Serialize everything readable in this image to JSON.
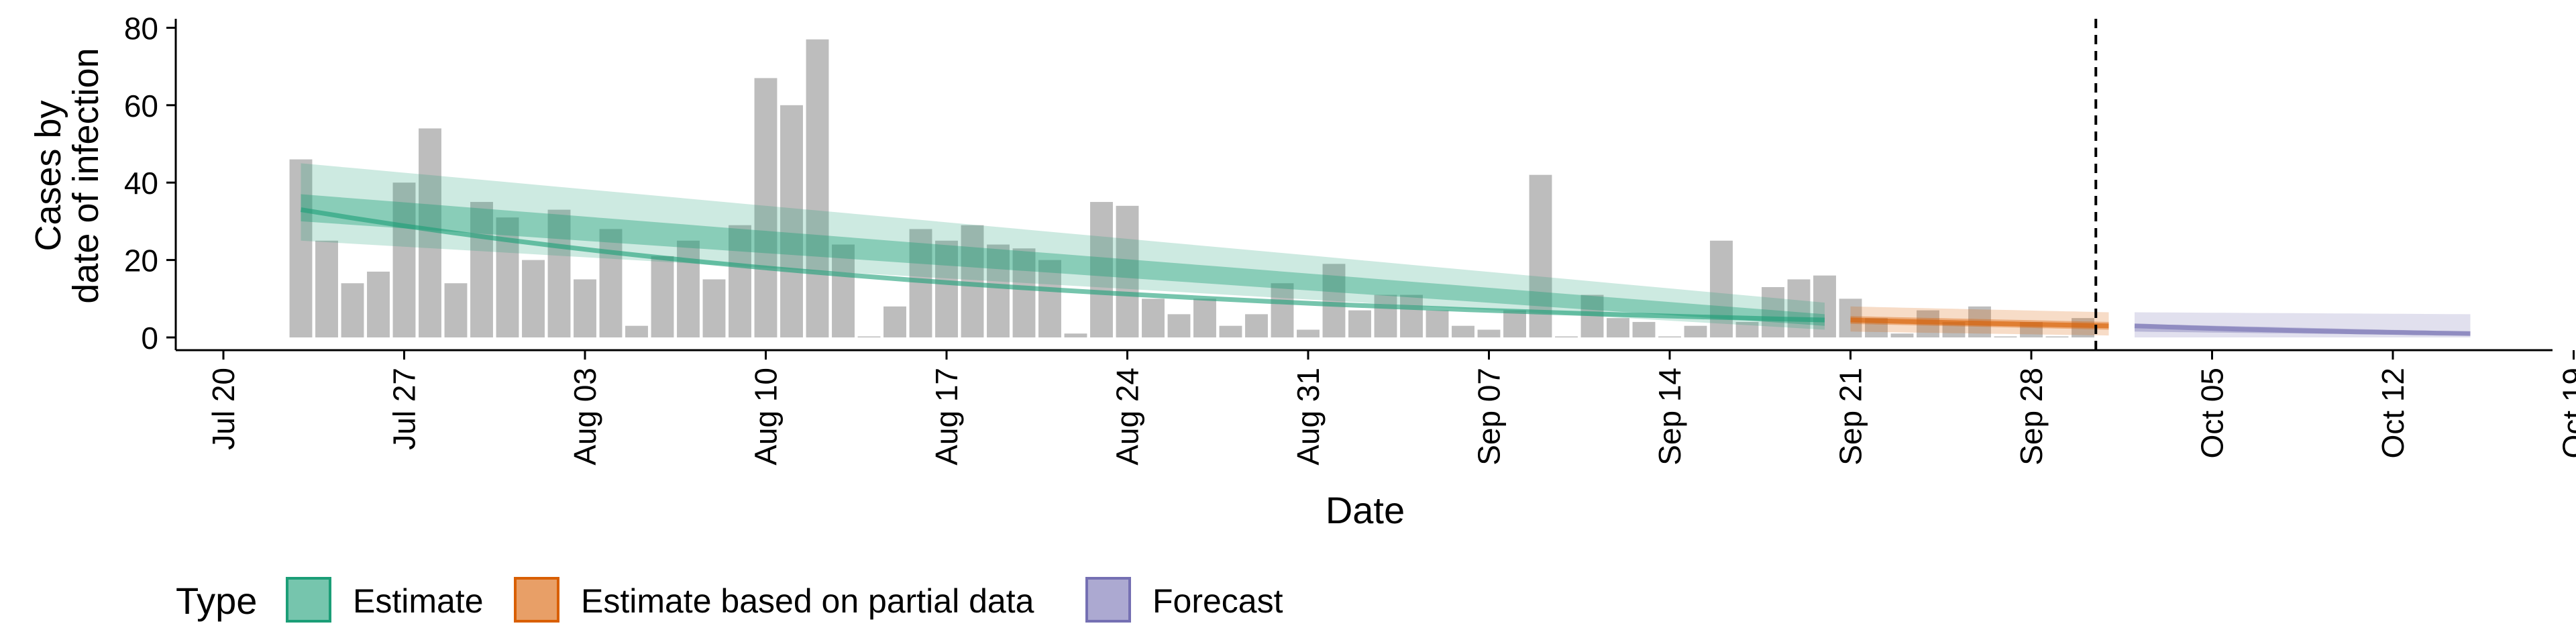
{
  "chart_data": {
    "type": "bar",
    "xlabel": "Date",
    "ylabel_lines": [
      "Cases by",
      "date of infection"
    ],
    "ylim": [
      0,
      80
    ],
    "y_ticks": [
      0,
      20,
      40,
      60,
      80
    ],
    "x_start_date": "Jul 20",
    "x_ticks": [
      {
        "label": "Jul 20",
        "day": 0
      },
      {
        "label": "Jul 27",
        "day": 7
      },
      {
        "label": "Aug 03",
        "day": 14
      },
      {
        "label": "Aug 10",
        "day": 21
      },
      {
        "label": "Aug 17",
        "day": 28
      },
      {
        "label": "Aug 24",
        "day": 35
      },
      {
        "label": "Aug 31",
        "day": 42
      },
      {
        "label": "Sep 07",
        "day": 49
      },
      {
        "label": "Sep 14",
        "day": 56
      },
      {
        "label": "Sep 21",
        "day": 63
      },
      {
        "label": "Sep 28",
        "day": 70
      },
      {
        "label": "Oct 05",
        "day": 77
      },
      {
        "label": "Oct 12",
        "day": 84
      },
      {
        "label": "Oct 19",
        "day": 91
      }
    ],
    "cases_first_day": 3,
    "cases": [
      46,
      25,
      14,
      17,
      40,
      54,
      14,
      35,
      31,
      20,
      33,
      15,
      28,
      3,
      21,
      25,
      15,
      29,
      67,
      60,
      77,
      24,
      0,
      8,
      28,
      25,
      29,
      24,
      23,
      20,
      1,
      35,
      34,
      10,
      6,
      10,
      3,
      6,
      14,
      2,
      19,
      7,
      11,
      11,
      7,
      3,
      2,
      7,
      42,
      0,
      11,
      5,
      4,
      0,
      3,
      25,
      4,
      13,
      15,
      16,
      10,
      5,
      1,
      7,
      4,
      8,
      0,
      4,
      0,
      5
    ],
    "vline_day": 72.5,
    "grid": false,
    "legend_position": "bottom",
    "legend_title": "Type",
    "series": [
      {
        "name": "Estimate",
        "color": "#1b9e77",
        "start_day": 3,
        "end_day": 62,
        "median": [
          33,
          4.5
        ],
        "inner": [
          [
            30,
            37
          ],
          [
            3,
            6
          ]
        ],
        "outer": [
          [
            25,
            45
          ],
          [
            2,
            9
          ]
        ]
      },
      {
        "name": "Estimate based on partial data",
        "color": "#d95f02",
        "start_day": 63,
        "end_day": 73,
        "median": [
          4.5,
          3
        ],
        "inner": [
          [
            3.5,
            5.5
          ],
          [
            2,
            4
          ]
        ],
        "outer": [
          [
            1.5,
            8
          ],
          [
            0.5,
            6.5
          ]
        ]
      },
      {
        "name": "Forecast",
        "color": "#7570b3",
        "start_day": 74,
        "end_day": 87,
        "median": [
          3,
          1
        ],
        "inner": [
          [
            1.5,
            3.5
          ],
          [
            0.5,
            1.5
          ]
        ],
        "outer": [
          [
            0,
            6.5
          ],
          [
            0,
            6
          ]
        ]
      }
    ]
  }
}
